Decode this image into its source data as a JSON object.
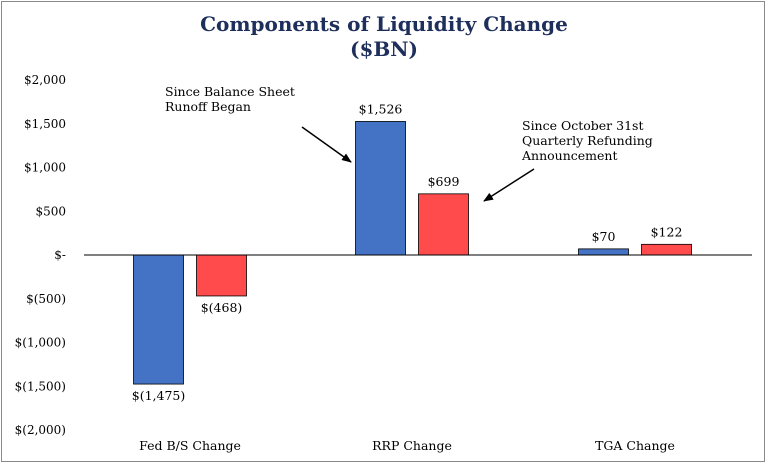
{
  "chart_data": {
    "type": "bar",
    "title": "Components of Liquidity Change",
    "subtitle": "($BN)",
    "categories": [
      "Fed B/S Change",
      "RRP Change",
      "TGA Change"
    ],
    "series": [
      {
        "color": "#4472c4",
        "values": [
          -1475,
          1526,
          70
        ],
        "labels": [
          "$(1,475)",
          "$1,526",
          "$70"
        ]
      },
      {
        "color": "#ff4b4b",
        "values": [
          -468,
          699,
          122
        ],
        "labels": [
          "$(468)",
          "$699",
          "$122"
        ]
      }
    ],
    "ylim": [
      -2000,
      2000
    ],
    "yticks": [
      2000,
      1500,
      1000,
      500,
      0,
      -500,
      -1000,
      -1500,
      -2000
    ],
    "ytick_labels": [
      "$2,000",
      "$1,500",
      "$1,000",
      "$500",
      "$-",
      "$(500)",
      "$(1,000)",
      "$(1,500)",
      "$(2,000)"
    ],
    "grid": false,
    "annotations": [
      {
        "lines": [
          "Since Balance Sheet",
          "Runoff Began"
        ],
        "points_to": "RRP Change series 1 bar"
      },
      {
        "lines": [
          "Since October 31st",
          "Quarterly Refunding",
          "Announcement"
        ],
        "points_to": "RRP Change series 2 bar"
      }
    ],
    "colors": {
      "title": "#1f2f5c",
      "axis": "#000000",
      "frame": "#8a8a8a"
    }
  }
}
